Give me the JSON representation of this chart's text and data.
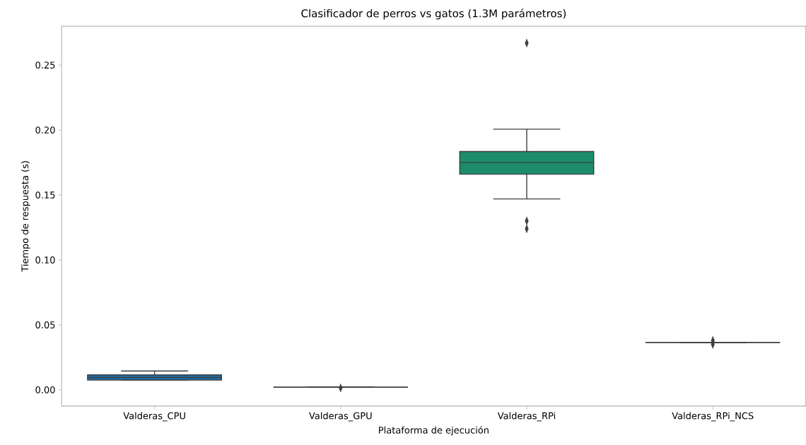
{
  "chart_data": {
    "type": "box",
    "title": "Clasificador de perros vs gatos (1.3M parámetros)",
    "xlabel": "Plataforma de ejecución",
    "ylabel": "Tiempo de respuesta (s)",
    "categories": [
      "Valderas_CPU",
      "Valderas_GPU",
      "Valderas_RPi",
      "Valderas_RPi_NCS"
    ],
    "colors": [
      "#1f6fa6",
      "#3f3f3f",
      "#1c8c6a",
      "#3f3f3f"
    ],
    "boxes": [
      {
        "low": 0.0075,
        "q1": 0.0075,
        "median": 0.0095,
        "q3": 0.0115,
        "high": 0.0145
      },
      {
        "low": 0.002,
        "q1": 0.002,
        "median": 0.002,
        "q3": 0.002,
        "high": 0.002,
        "outliers": [
          0.0015
        ]
      },
      {
        "low": 0.147,
        "q1": 0.166,
        "median": 0.175,
        "q3": 0.1835,
        "high": 0.2007,
        "outliers": [
          0.267,
          0.13,
          0.124
        ]
      },
      {
        "low": 0.0365,
        "q1": 0.0365,
        "median": 0.0365,
        "q3": 0.0365,
        "high": 0.0365,
        "outliers": [
          0.035,
          0.038
        ]
      }
    ],
    "ylim": [
      -0.0125,
      0.28
    ],
    "yticks": [
      {
        "value": 0,
        "label": "0.00"
      },
      {
        "value": 0.05,
        "label": "0.05"
      },
      {
        "value": 0.1,
        "label": "0.10"
      },
      {
        "value": 0.15,
        "label": "0.15"
      },
      {
        "value": 0.2,
        "label": "0.20"
      },
      {
        "value": 0.25,
        "label": "0.25"
      }
    ],
    "marker": "diamond"
  }
}
